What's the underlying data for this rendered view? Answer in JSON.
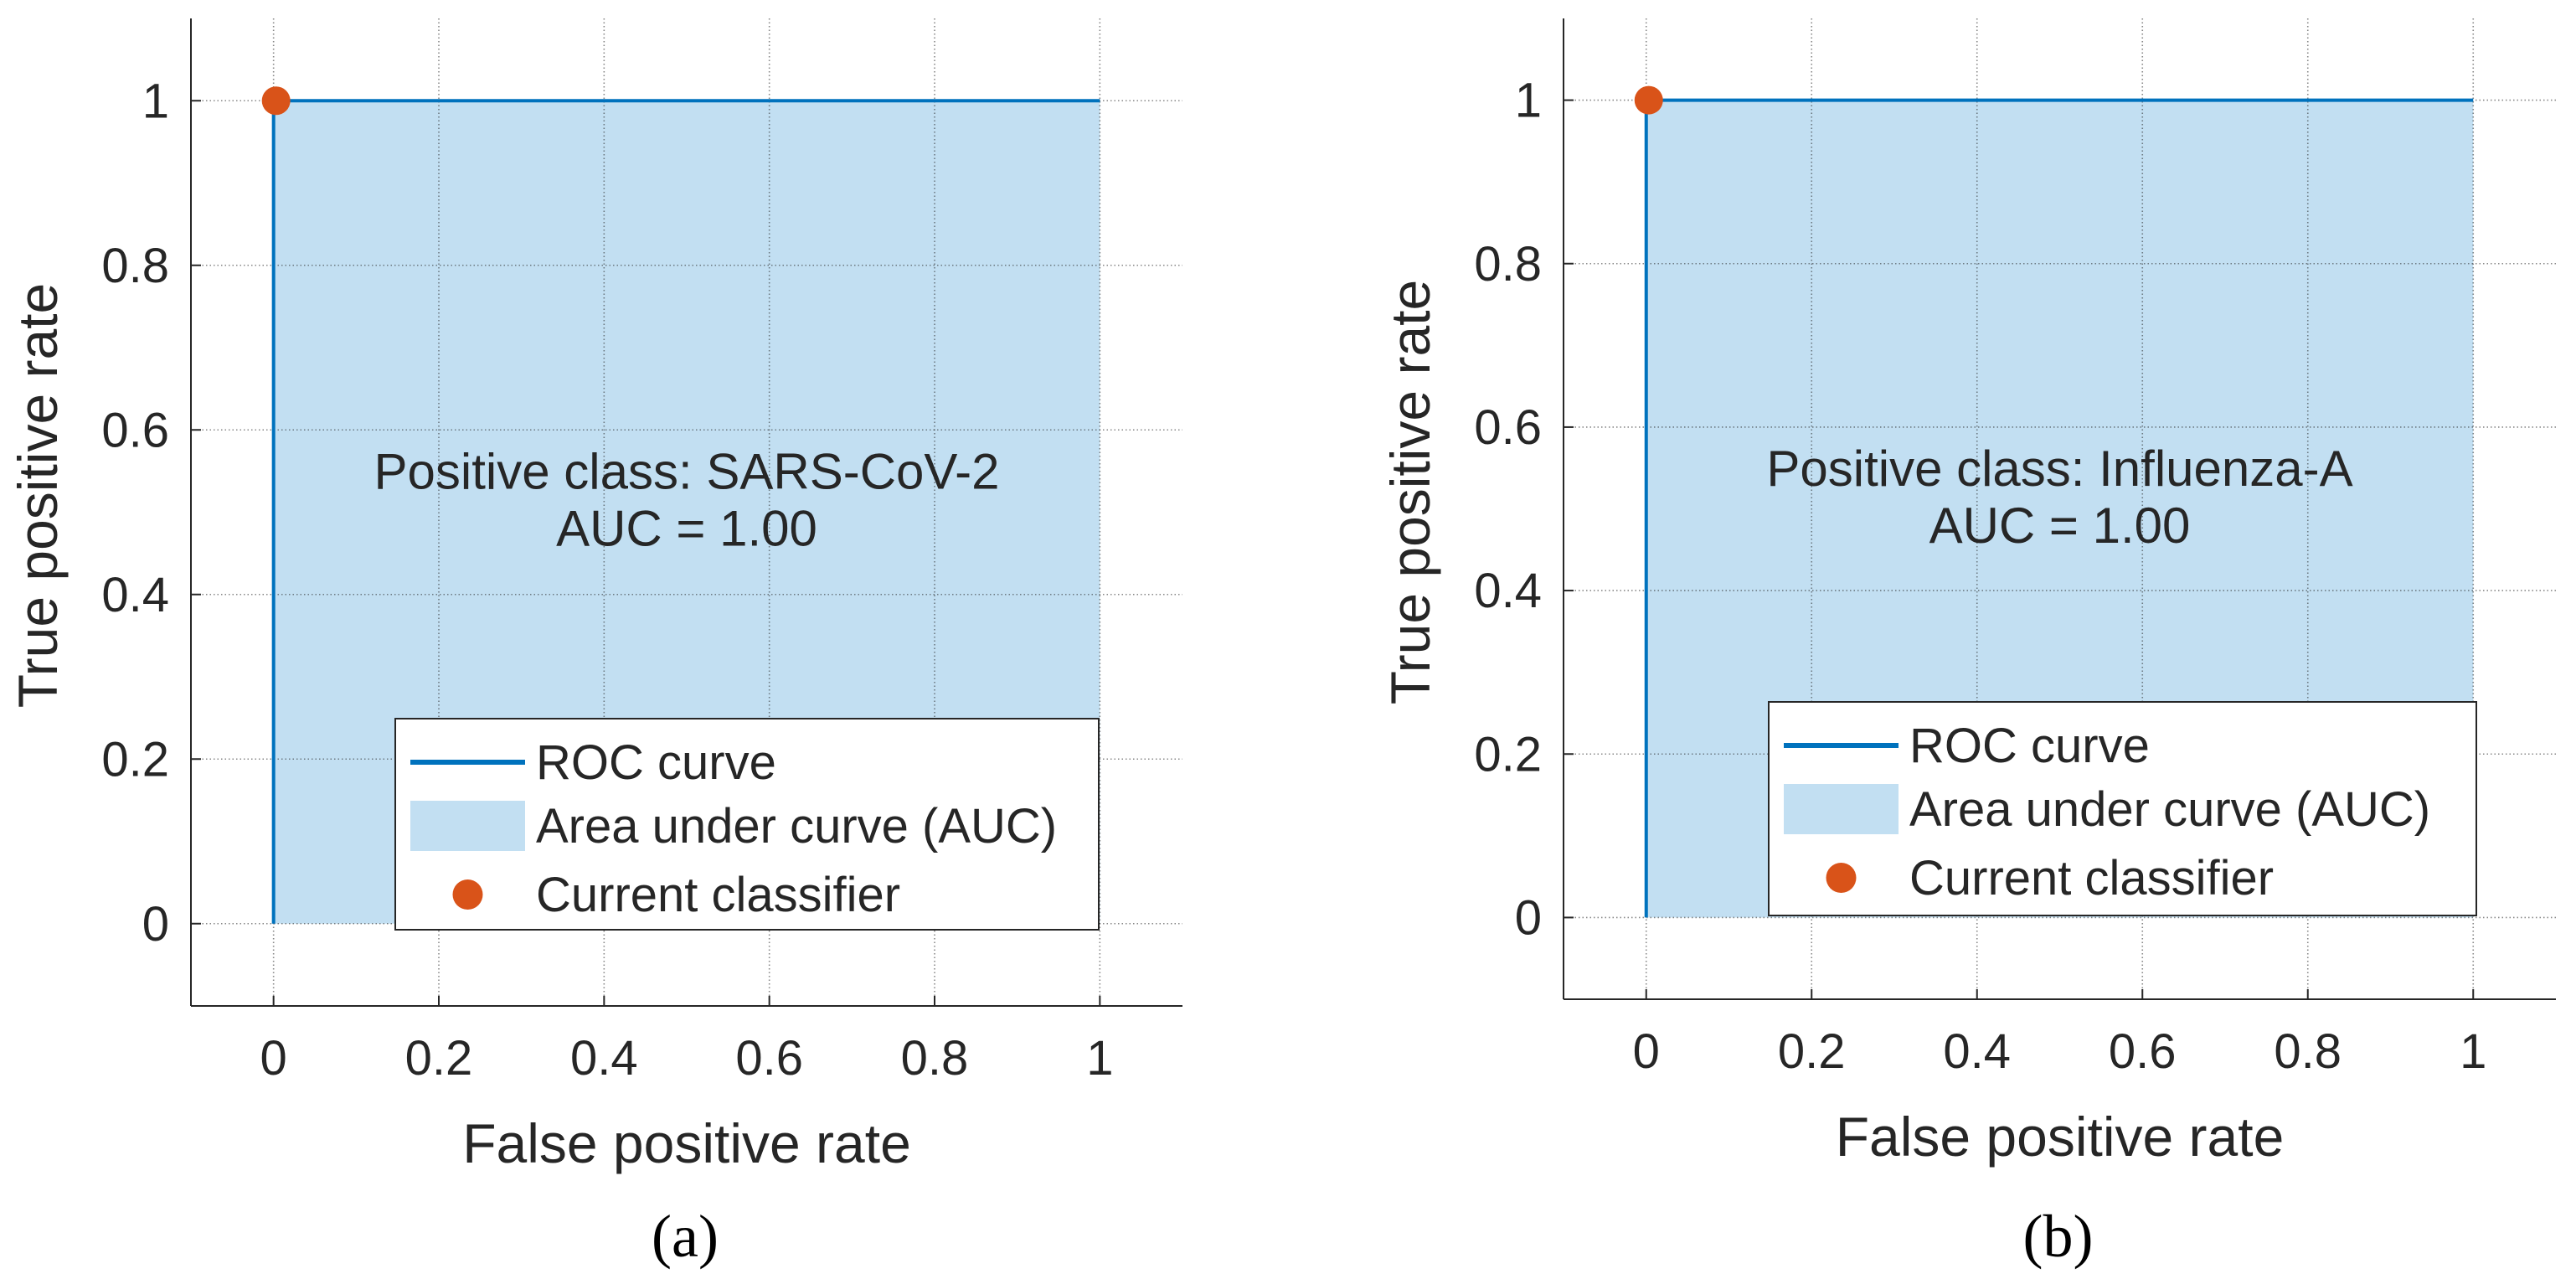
{
  "colors": {
    "roc_line": "#0072BD",
    "auc_fill": "#C2DFF2",
    "classifier_point": "#D95319",
    "grid": "#262626",
    "axis": "#262626",
    "text": "#262626"
  },
  "chart_data": [
    {
      "type": "line",
      "panel_label": "(a)",
      "title": "",
      "xlabel": "False positive rate",
      "ylabel": "True positive rate",
      "xlim": [
        -0.1,
        1.1
      ],
      "ylim": [
        -0.1,
        1.1
      ],
      "xticks": [
        0,
        0.2,
        0.4,
        0.6,
        0.8,
        1
      ],
      "xtick_labels": [
        "0",
        "0.2",
        "0.4",
        "0.6",
        "0.8",
        "1"
      ],
      "yticks": [
        0,
        0.2,
        0.4,
        0.6,
        0.8,
        1
      ],
      "ytick_labels": [
        "0",
        "0.2",
        "0.4",
        "0.6",
        "0.8",
        "1"
      ],
      "grid": true,
      "series": [
        {
          "name": "ROC curve",
          "x": [
            0,
            0,
            1
          ],
          "y": [
            0,
            1,
            1
          ]
        }
      ],
      "area_under_curve": {
        "name": "Area under curve (AUC)",
        "x": [
          0,
          0,
          1,
          1
        ],
        "y": [
          0,
          1,
          1,
          0
        ]
      },
      "current_classifier": {
        "name": "Current classifier",
        "x": 0,
        "y": 1
      },
      "annotation": {
        "line1": "Positive class: SARS-CoV-2",
        "line2": "AUC = 1.00",
        "x": 0.5,
        "y": 0.6
      },
      "legend": {
        "placement": "bottom-right",
        "entries": [
          "ROC curve",
          "Area under curve (AUC)",
          "Current classifier"
        ]
      }
    },
    {
      "type": "line",
      "panel_label": "(b)",
      "title": "",
      "xlabel": "False positive rate",
      "ylabel": "True positive rate",
      "xlim": [
        -0.1,
        1.1
      ],
      "ylim": [
        -0.1,
        1.1
      ],
      "xticks": [
        0,
        0.2,
        0.4,
        0.6,
        0.8,
        1
      ],
      "xtick_labels": [
        "0",
        "0.2",
        "0.4",
        "0.6",
        "0.8",
        "1"
      ],
      "yticks": [
        0,
        0.2,
        0.4,
        0.6,
        0.8,
        1
      ],
      "ytick_labels": [
        "0",
        "0.2",
        "0.4",
        "0.6",
        "0.8",
        "1"
      ],
      "grid": true,
      "series": [
        {
          "name": "ROC curve",
          "x": [
            0,
            0,
            1
          ],
          "y": [
            0,
            1,
            1
          ]
        }
      ],
      "area_under_curve": {
        "name": "Area under curve (AUC)",
        "x": [
          0,
          0,
          1,
          1
        ],
        "y": [
          0,
          1,
          1,
          0
        ]
      },
      "current_classifier": {
        "name": "Current classifier",
        "x": 0,
        "y": 1
      },
      "annotation": {
        "line1": "Positive class: Influenza-A",
        "line2": "AUC = 1.00",
        "x": 0.5,
        "y": 0.6
      },
      "legend": {
        "placement": "bottom-right",
        "entries": [
          "ROC curve",
          "Area under curve (AUC)",
          "Current classifier"
        ]
      }
    }
  ]
}
